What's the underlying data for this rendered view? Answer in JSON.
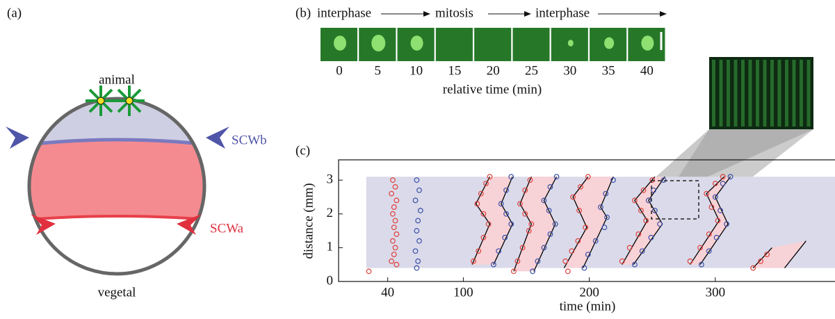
{
  "panel_a": {
    "label": "(a)",
    "top_label": "animal",
    "bottom_label": "vegetal",
    "wave_b": "SCWb",
    "wave_a": "SCWa"
  },
  "panel_b": {
    "label": "(b)",
    "phases": [
      "interphase",
      "mitosis",
      "interphase"
    ],
    "frame_times": [
      0,
      5,
      10,
      15,
      20,
      25,
      30,
      35,
      40
    ],
    "xlabel": "relative time (min)"
  },
  "chart_data": {
    "type": "scatter",
    "panel_label": "(c)",
    "xlabel": "time (min)",
    "ylabel": "distance (mm)",
    "xlim": [
      1,
      395
    ],
    "ylim": [
      0,
      3.6
    ],
    "xticks": [
      40,
      100,
      200,
      300
    ],
    "yticks": [
      0,
      1,
      2,
      3
    ],
    "band": {
      "x": [
        23,
        395
      ],
      "y": [
        0.4,
        3.1
      ],
      "color": "#dadaea"
    },
    "fill_between_color": "#f7d2d6",
    "series": [
      {
        "color": "#e0403a",
        "x": [
          25,
          44,
          46,
          43,
          47,
          45,
          44,
          46,
          45,
          47,
          44,
          46,
          45,
          43,
          47,
          108,
          112,
          116,
          120,
          116,
          111,
          114,
          118,
          121,
          140,
          143,
          147,
          152,
          154,
          149,
          145,
          149,
          153,
          183,
          181,
          186,
          191,
          197,
          192,
          187,
          193,
          199,
          226,
          232,
          239,
          245,
          241,
          236,
          243,
          250,
          280,
          288,
          295,
          302,
          297,
          293,
          300,
          306,
          330,
          336,
          341
        ],
        "values": [
          0.3,
          3.0,
          2.8,
          2.6,
          2.4,
          2.2,
          2.0,
          1.8,
          1.6,
          1.4,
          1.2,
          1.0,
          0.8,
          0.6,
          0.5,
          0.6,
          0.9,
          1.3,
          1.7,
          2.0,
          2.3,
          2.6,
          2.9,
          3.1,
          0.3,
          0.6,
          1.0,
          1.5,
          1.7,
          2.0,
          2.3,
          2.7,
          3.0,
          0.3,
          0.6,
          0.9,
          1.2,
          1.6,
          2.1,
          2.5,
          2.8,
          3.1,
          0.6,
          1.0,
          1.4,
          1.8,
          2.1,
          2.4,
          2.7,
          3.0,
          0.6,
          1.0,
          1.4,
          1.8,
          2.2,
          2.6,
          2.9,
          3.1,
          0.4,
          0.6,
          0.8
        ]
      },
      {
        "color": "#3a4fa8",
        "x": [
          63,
          65,
          62,
          66,
          64,
          63,
          65,
          62,
          64,
          63,
          124,
          128,
          133,
          138,
          134,
          130,
          134,
          138,
          155,
          159,
          164,
          169,
          173,
          168,
          164,
          169,
          174,
          196,
          199,
          205,
          212,
          214,
          209,
          213,
          219,
          236,
          242,
          249,
          256,
          252,
          247,
          251,
          259,
          289,
          295,
          301,
          309,
          304,
          300,
          306,
          312
        ],
        "values": [
          3.0,
          2.7,
          2.4,
          2.1,
          1.8,
          1.5,
          1.2,
          0.9,
          0.6,
          0.4,
          0.5,
          0.9,
          1.3,
          1.7,
          2.0,
          2.3,
          2.7,
          3.1,
          0.3,
          0.6,
          1.0,
          1.4,
          1.7,
          2.1,
          2.4,
          2.8,
          3.1,
          0.4,
          0.8,
          1.2,
          1.6,
          1.9,
          2.2,
          2.6,
          3.0,
          0.5,
          0.9,
          1.3,
          1.7,
          2.1,
          2.4,
          2.7,
          3.0,
          0.5,
          0.9,
          1.3,
          1.7,
          2.1,
          2.5,
          2.9,
          3.1
        ]
      },
      {
        "style": "line",
        "color": "#000000",
        "x": [
          107,
          121,
          110,
          121,
          null,
          140,
          154,
          145,
          154,
          null,
          180,
          198,
          187,
          199,
          null,
          226,
          246,
          236,
          252,
          null,
          280,
          303,
          293,
          307,
          null,
          330,
          345
        ],
        "values": [
          0.5,
          1.7,
          2.3,
          3.1,
          null,
          0.3,
          1.7,
          2.3,
          3.1,
          null,
          0.4,
          1.6,
          2.5,
          3.1,
          null,
          0.5,
          1.8,
          2.4,
          3.1,
          null,
          0.5,
          1.8,
          2.6,
          3.1,
          null,
          0.4,
          1.0
        ]
      },
      {
        "style": "line",
        "color": "#000000",
        "x": [
          124,
          139,
          130,
          139,
          null,
          156,
          173,
          164,
          174,
          null,
          195,
          214,
          209,
          219,
          null,
          235,
          258,
          247,
          260,
          null,
          288,
          310,
          300,
          312,
          null,
          355,
          372
        ],
        "values": [
          0.5,
          1.7,
          2.3,
          3.1,
          null,
          0.3,
          1.7,
          2.4,
          3.1,
          null,
          0.4,
          1.9,
          2.2,
          3.1,
          null,
          0.5,
          1.7,
          2.4,
          3.1,
          null,
          0.5,
          1.7,
          2.5,
          3.1,
          null,
          0.4,
          1.2
        ]
      }
    ]
  }
}
